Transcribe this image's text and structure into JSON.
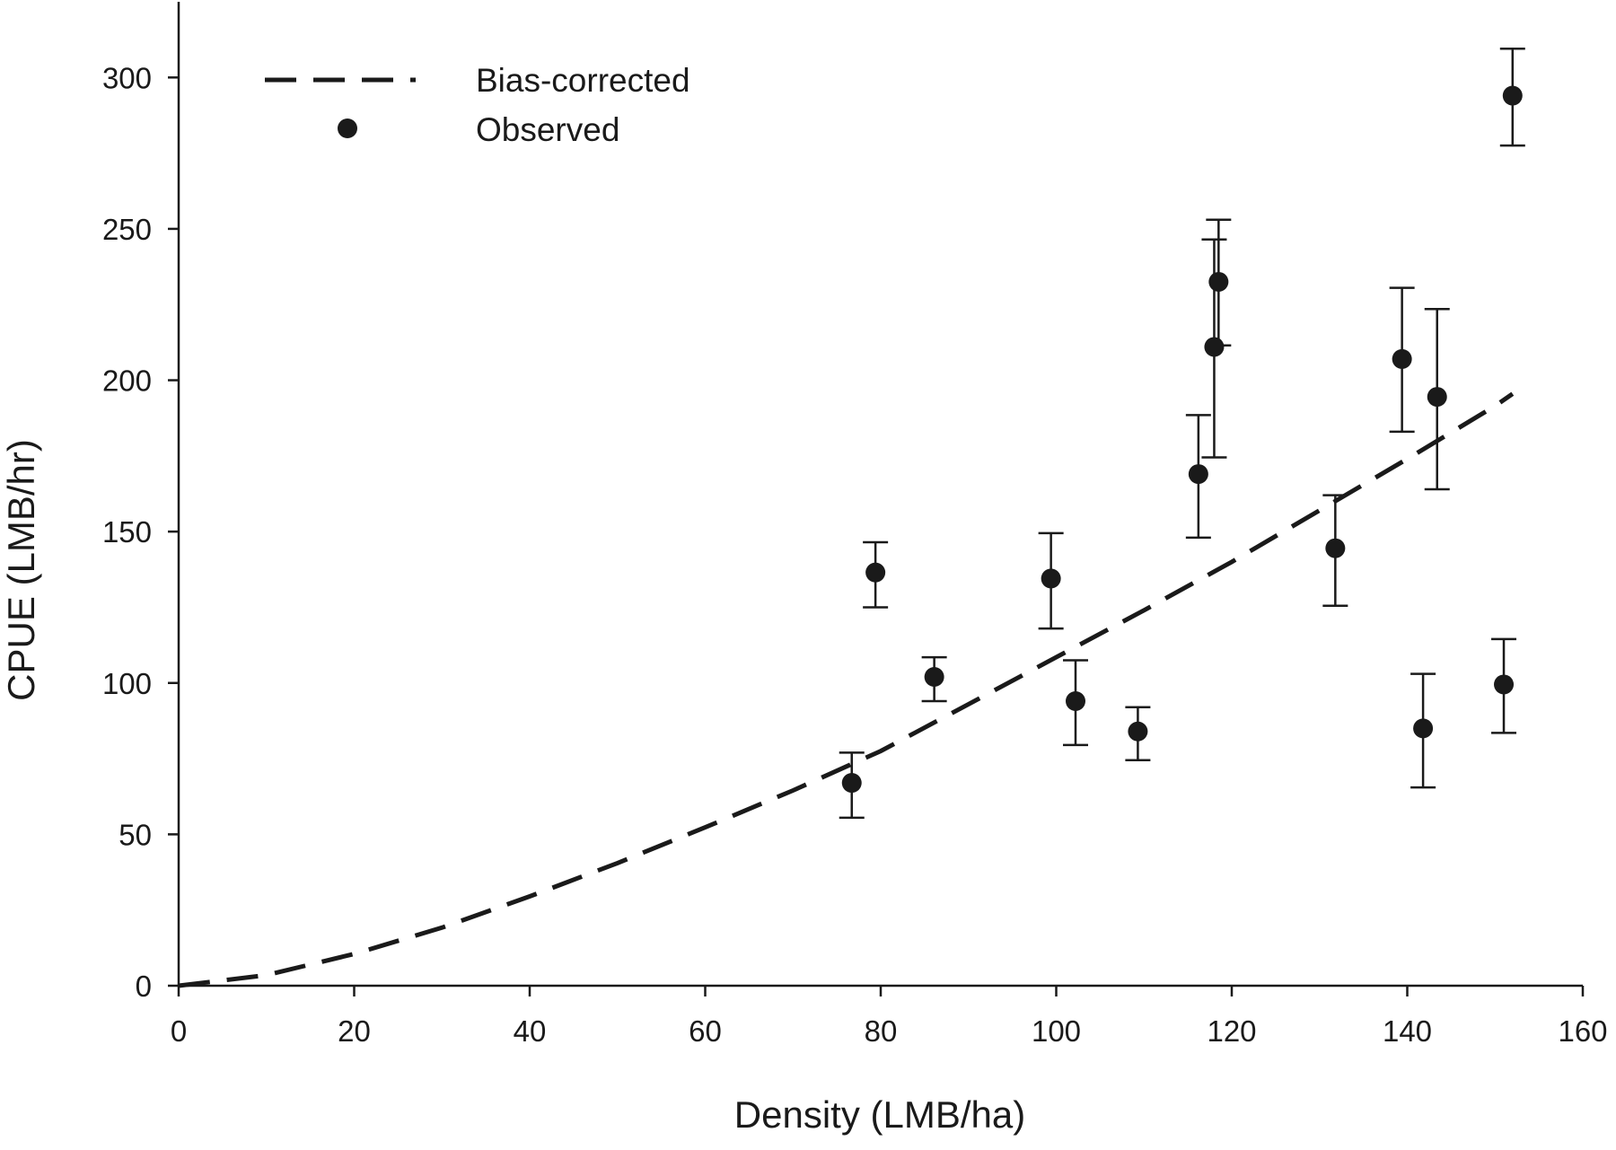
{
  "chart_data": {
    "type": "scatter",
    "title": "",
    "xlabel": "Density (LMB/ha)",
    "ylabel": "CPUE (LMB/hr)",
    "xlim": [
      0,
      160
    ],
    "ylim": [
      0,
      325
    ],
    "xticks": [
      0,
      20,
      40,
      60,
      80,
      100,
      120,
      140,
      160
    ],
    "yticks": [
      0,
      50,
      100,
      150,
      200,
      250,
      300
    ],
    "grid": false,
    "legend_position": "top-left",
    "series": [
      {
        "name": "Bias-corrected",
        "kind": "line",
        "style": "dashed",
        "color": "#1a1a1a",
        "x": [
          0,
          10,
          20,
          30,
          40,
          50,
          60,
          70,
          80,
          90,
          100,
          110,
          120,
          130,
          140,
          150,
          152
        ],
        "y": [
          0,
          3.5,
          10.5,
          19.2,
          29.5,
          40.5,
          52.3,
          64.5,
          77.5,
          93,
          108.5,
          124,
          140,
          157,
          174,
          191.5,
          195.5
        ]
      },
      {
        "name": "Observed",
        "kind": "points",
        "color": "#1a1a1a",
        "points": [
          {
            "x": 76.7,
            "y": 67,
            "lower": 55.5,
            "upper": 77
          },
          {
            "x": 79.4,
            "y": 136.5,
            "lower": 125,
            "upper": 146.5
          },
          {
            "x": 86.1,
            "y": 102,
            "lower": 94,
            "upper": 108.5
          },
          {
            "x": 99.4,
            "y": 134.5,
            "lower": 118,
            "upper": 149.5
          },
          {
            "x": 102.2,
            "y": 94,
            "lower": 79.5,
            "upper": 107.5
          },
          {
            "x": 109.3,
            "y": 84,
            "lower": 74.5,
            "upper": 92
          },
          {
            "x": 116.2,
            "y": 169,
            "lower": 148,
            "upper": 188.5
          },
          {
            "x": 118.0,
            "y": 211,
            "lower": 174.5,
            "upper": 246.5
          },
          {
            "x": 118.5,
            "y": 232.5,
            "lower": 211.5,
            "upper": 253
          },
          {
            "x": 131.8,
            "y": 144.5,
            "lower": 125.5,
            "upper": 162
          },
          {
            "x": 139.4,
            "y": 207,
            "lower": 183,
            "upper": 230.5
          },
          {
            "x": 141.8,
            "y": 85,
            "lower": 65.5,
            "upper": 103
          },
          {
            "x": 143.4,
            "y": 194.5,
            "lower": 164,
            "upper": 223.5
          },
          {
            "x": 151.0,
            "y": 99.5,
            "lower": 83.5,
            "upper": 114.5
          },
          {
            "x": 152.0,
            "y": 294,
            "lower": 277.5,
            "upper": 309.5
          }
        ]
      }
    ]
  }
}
